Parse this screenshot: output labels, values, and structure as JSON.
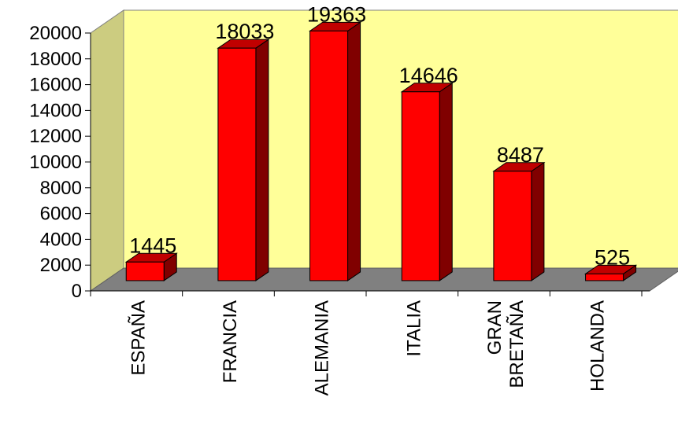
{
  "chart_data": {
    "type": "bar",
    "title": "",
    "xlabel": "",
    "ylabel": "",
    "categories": [
      "ESPAÑA",
      "FRANCIA",
      "ALEMANIA",
      "ITALIA",
      "GRAN BRETAÑA",
      "HOLANDA"
    ],
    "category_lines": [
      [
        "ESPAÑA"
      ],
      [
        "FRANCIA"
      ],
      [
        "ALEMANIA"
      ],
      [
        "ITALIA"
      ],
      [
        "GRAN",
        "BRETAÑA"
      ],
      [
        "HOLANDA"
      ]
    ],
    "values": [
      1445,
      18033,
      19363,
      14646,
      8487,
      525
    ],
    "data_labels": [
      "1445",
      "18033",
      "19363",
      "14646",
      "8487",
      "525"
    ],
    "ylim": [
      0,
      20000
    ],
    "yticks": [
      0,
      2000,
      4000,
      6000,
      8000,
      10000,
      12000,
      14000,
      16000,
      18000,
      20000
    ],
    "grid": false,
    "legend": "none",
    "colors": {
      "bar_front": "#ff0000",
      "bar_side": "#800000",
      "bar_top": "#c00000",
      "back_wall": "#ffff99",
      "floor": "#808080",
      "side_wall": "#cccc80"
    }
  }
}
